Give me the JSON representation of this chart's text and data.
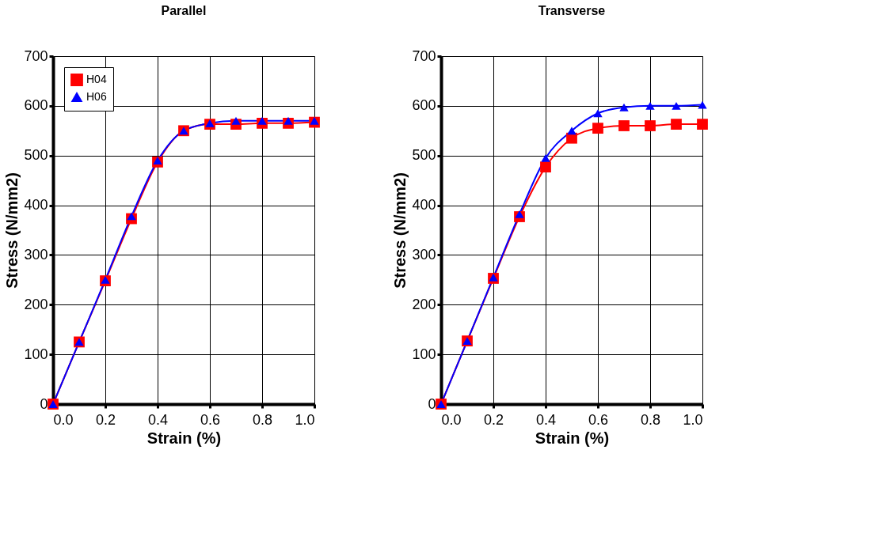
{
  "chart_data": [
    {
      "type": "line",
      "title": "Parallel",
      "xlabel": "Strain (%)",
      "ylabel": "Stress (N/mm2)",
      "x": [
        0,
        0.1,
        0.2,
        0.3,
        0.4,
        0.5,
        0.6,
        0.7,
        0.8,
        0.9,
        1.0
      ],
      "series": [
        {
          "name": "H04",
          "color": "#ff0000",
          "marker": "square",
          "values": [
            0,
            125,
            248,
            373,
            487,
            550,
            563,
            563,
            565,
            565,
            567
          ]
        },
        {
          "name": "H06",
          "color": "#0000ff",
          "marker": "triangle",
          "values": [
            0,
            125,
            250,
            378,
            490,
            550,
            565,
            570,
            570,
            570,
            570
          ]
        }
      ],
      "xlim": [
        0,
        1
      ],
      "xticks": [
        {
          "value": 0,
          "label": "0.0"
        },
        {
          "value": 0.2,
          "label": "0.2"
        },
        {
          "value": 0.4,
          "label": "0.4"
        },
        {
          "value": 0.6,
          "label": "0.6"
        },
        {
          "value": 0.8,
          "label": "0.8"
        },
        {
          "value": 1,
          "label": "1.0"
        }
      ],
      "ylim": [
        0,
        700
      ],
      "yticks": [
        0,
        100,
        200,
        300,
        400,
        500,
        600,
        700
      ],
      "grid": true,
      "legend": "top left"
    },
    {
      "type": "line",
      "title": "Transverse",
      "xlabel": "Strain (%)",
      "ylabel": "Stress (N/mm2)",
      "x": [
        0,
        0.1,
        0.2,
        0.3,
        0.4,
        0.5,
        0.6,
        0.7,
        0.8,
        0.9,
        1.0
      ],
      "series": [
        {
          "name": "H04",
          "color": "#ff0000",
          "marker": "square",
          "values": [
            0,
            127,
            253,
            377,
            477,
            535,
            555,
            560,
            560,
            563,
            563
          ]
        },
        {
          "name": "H06",
          "color": "#0000ff",
          "marker": "triangle",
          "values": [
            0,
            127,
            255,
            382,
            495,
            550,
            585,
            597,
            600,
            600,
            602
          ]
        }
      ],
      "xlim": [
        0,
        1
      ],
      "xticks": [
        {
          "value": 0,
          "label": "0.0"
        },
        {
          "value": 0.2,
          "label": "0.2"
        },
        {
          "value": 0.4,
          "label": "0.4"
        },
        {
          "value": 0.6,
          "label": "0.6"
        },
        {
          "value": 0.8,
          "label": "0.8"
        },
        {
          "value": 1,
          "label": "1.0"
        }
      ],
      "ylim": [
        0,
        700
      ],
      "yticks": [
        0,
        100,
        200,
        300,
        400,
        500,
        600,
        700
      ],
      "grid": true,
      "legend": "top left"
    }
  ]
}
